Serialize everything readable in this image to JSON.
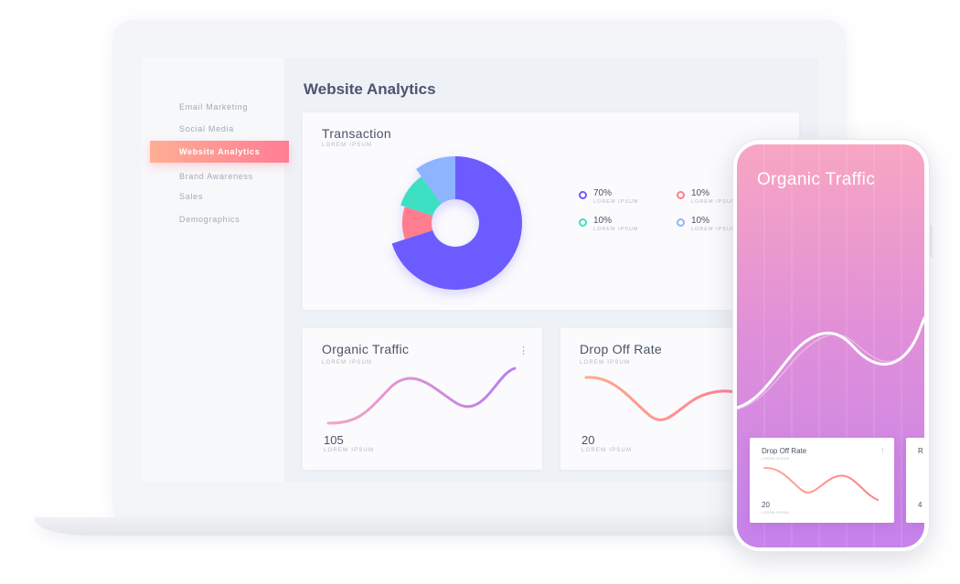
{
  "sidebar": {
    "items": [
      {
        "label": "Email Marketing",
        "active": false
      },
      {
        "label": "Social Media",
        "active": false
      },
      {
        "label": "Website Analytics",
        "active": true
      },
      {
        "label": "Brand Awareness",
        "active": false
      },
      {
        "label": "Sales",
        "active": false
      },
      {
        "label": "Demographics",
        "active": false
      }
    ]
  },
  "main": {
    "title": "Website Analytics",
    "transaction": {
      "title": "Transaction",
      "subtitle": "LOREM IPSUM",
      "legend": [
        {
          "value": "70%",
          "label": "LOREM IPSUM",
          "color": "#6c5cff"
        },
        {
          "value": "10%",
          "label": "LOREM IPSUM",
          "color": "#ff7d8f"
        },
        {
          "value": "10%",
          "label": "LOREM IPSUM",
          "color": "#3ee0c2"
        },
        {
          "value": "10%",
          "label": "LOREM IPSUM",
          "color": "#8eb4ff"
        }
      ]
    },
    "organic_traffic": {
      "title": "Organic Traffic",
      "subtitle": "LOREM IPSUM",
      "value": "105",
      "value_label": "LOREM IPSUM",
      "menu": "⋮"
    },
    "drop_off": {
      "title": "Drop Off Rate",
      "subtitle": "LOREM IPSUM",
      "value": "20",
      "value_label": "LOREM IPSUM"
    }
  },
  "phone": {
    "title": "Organic Traffic",
    "card": {
      "title": "Drop Off Rate",
      "subtitle": "LOREM IPSUM",
      "value": "20",
      "value_label": "LOREM IPSUM",
      "menu": "⋮"
    },
    "card2": {
      "title": "R",
      "value": "4"
    }
  },
  "chart_data": {
    "type": "pie",
    "title": "Transaction",
    "categories": [
      "Purple",
      "Coral",
      "Teal",
      "Light Blue"
    ],
    "values": [
      70,
      10,
      10,
      10
    ],
    "colors": [
      "#6c5cff",
      "#ff7d8f",
      "#3ee0c2",
      "#8eb4ff"
    ],
    "chart_subtype": "donut"
  }
}
